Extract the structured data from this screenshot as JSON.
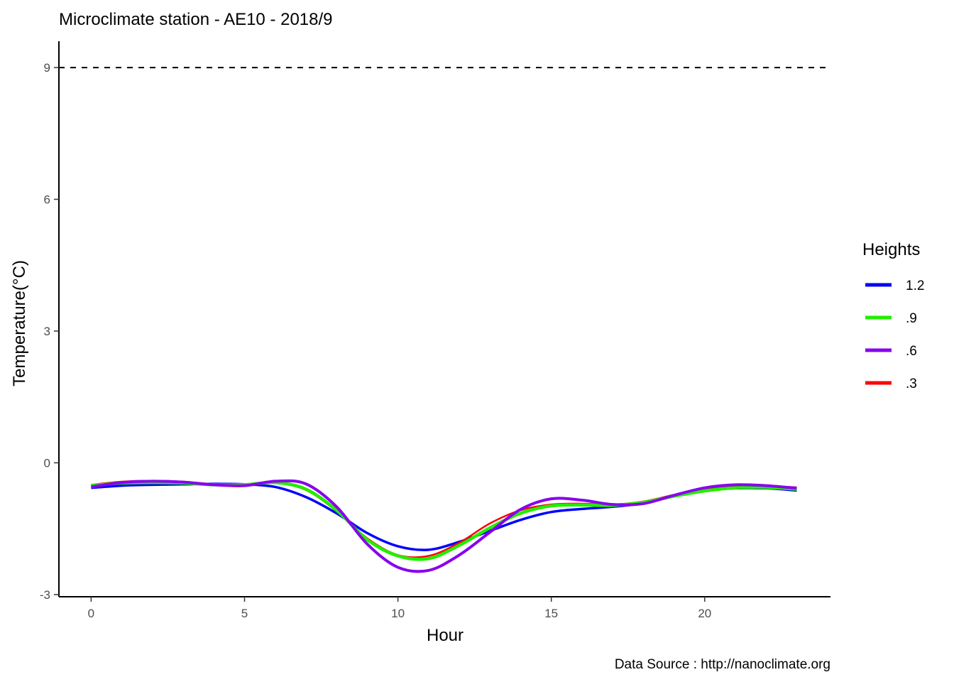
{
  "chart_data": {
    "type": "line",
    "title": "Microclimate station -  AE10 - 2018/9",
    "xlabel": "Hour",
    "ylabel": "Temperature(°C)",
    "caption": "Data Source : http://nanoclimate.org",
    "xlim": [
      -1.05,
      24.1
    ],
    "ylim": [
      -3.05,
      9.6
    ],
    "x_ticks": [
      0,
      5,
      10,
      15,
      20
    ],
    "y_ticks": [
      -3,
      0,
      3,
      6,
      9
    ],
    "grid": false,
    "legend": {
      "title": "Heights",
      "position": "right"
    },
    "reference_line": {
      "y": 9,
      "style": "dashed",
      "color": "#000000"
    },
    "x": [
      0,
      1,
      2,
      3,
      4,
      5,
      6,
      7,
      8,
      9,
      10,
      11,
      12,
      13,
      14,
      15,
      16,
      17,
      18,
      19,
      20,
      21,
      22,
      23
    ],
    "series": [
      {
        "name": "1.2",
        "color": "#0000ff",
        "values": [
          -0.57,
          -0.52,
          -0.5,
          -0.49,
          -0.48,
          -0.49,
          -0.55,
          -0.78,
          -1.15,
          -1.6,
          -1.9,
          -1.98,
          -1.8,
          -1.55,
          -1.3,
          -1.12,
          -1.05,
          -1.0,
          -0.92,
          -0.76,
          -0.62,
          -0.58,
          -0.58,
          -0.63
        ]
      },
      {
        "name": ".9",
        "color": "#22ee00",
        "values": [
          -0.52,
          -0.46,
          -0.45,
          -0.46,
          -0.5,
          -0.5,
          -0.45,
          -0.6,
          -1.08,
          -1.75,
          -2.12,
          -2.18,
          -1.88,
          -1.48,
          -1.15,
          -0.98,
          -0.96,
          -0.97,
          -0.9,
          -0.76,
          -0.64,
          -0.57,
          -0.56,
          -0.6
        ]
      },
      {
        "name": ".6",
        "color": "#8800ee",
        "values": [
          -0.55,
          -0.45,
          -0.42,
          -0.44,
          -0.5,
          -0.52,
          -0.42,
          -0.48,
          -1.0,
          -1.85,
          -2.38,
          -2.45,
          -2.1,
          -1.58,
          -1.06,
          -0.82,
          -0.85,
          -0.95,
          -0.93,
          -0.74,
          -0.57,
          -0.5,
          -0.52,
          -0.58
        ]
      },
      {
        "name": ".3",
        "color": "#ff0000",
        "values": [
          -0.5,
          -0.43,
          -0.41,
          -0.43,
          -0.49,
          -0.51,
          -0.46,
          -0.62,
          -1.1,
          -1.72,
          -2.1,
          -2.12,
          -1.82,
          -1.38,
          -1.08,
          -0.95,
          -0.93,
          -0.95,
          -0.88,
          -0.73,
          -0.6,
          -0.54,
          -0.53,
          -0.56
        ]
      }
    ]
  }
}
